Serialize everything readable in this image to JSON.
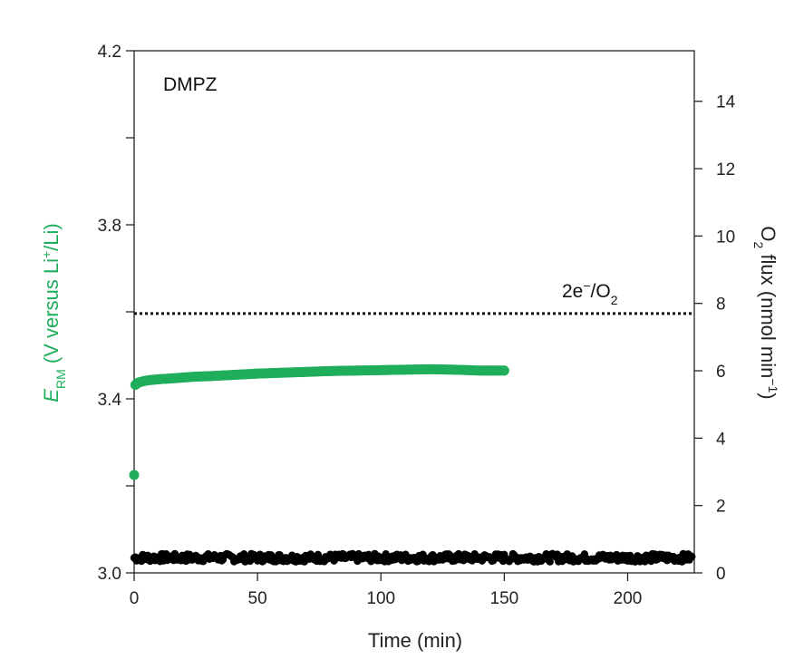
{
  "chart_data": {
    "type": "scatter",
    "panel_label": "DMPZ",
    "x_axis": {
      "label": "Time (min)",
      "range": [
        0,
        227
      ],
      "ticks": [
        0,
        50,
        100,
        150,
        200
      ],
      "tick_labels": [
        "0",
        "50",
        "100",
        "150",
        "200"
      ]
    },
    "y_left": {
      "label_symbol": "E",
      "label_subscript": "RM",
      "label_open": " (V versus Li",
      "label_superscript": "+",
      "label_close": "/Li)",
      "range": [
        3.0,
        4.2
      ],
      "ticks": [
        3.0,
        3.4,
        3.8,
        4.2
      ],
      "minor_ticks": [
        3.2,
        3.6,
        4.0
      ],
      "tick_labels": [
        "3.0",
        "3.4",
        "3.8",
        "4.2"
      ],
      "color": "#1fae5b"
    },
    "y_right": {
      "label_prefix": "O",
      "label_subscript": "2",
      "label_mid": " flux (nmol min",
      "label_superscript": "−1",
      "label_close": ")",
      "range": [
        0,
        15.5
      ],
      "ticks": [
        0,
        2,
        4,
        6,
        8,
        10,
        12,
        14
      ],
      "tick_labels": [
        "0",
        "2",
        "4",
        "6",
        "8",
        "10",
        "12",
        "14"
      ],
      "color": "#000000"
    },
    "reference_line": {
      "value": 7.7,
      "axis": "right",
      "style": "dotted",
      "label_base": "2e",
      "label_superscript": "−",
      "label_slash": "/O",
      "label_subscript": "2"
    },
    "series": [
      {
        "axis": "left",
        "color": "#1fae5b",
        "x": [
          0,
          0.5,
          1,
          2,
          4,
          6,
          8,
          10,
          15,
          20,
          25,
          30,
          40,
          50,
          60,
          70,
          80,
          90,
          100,
          110,
          120,
          130,
          140,
          145,
          150
        ],
        "y": [
          3.225,
          3.432,
          3.435,
          3.438,
          3.441,
          3.443,
          3.444,
          3.445,
          3.447,
          3.449,
          3.451,
          3.452,
          3.455,
          3.458,
          3.46,
          3.462,
          3.464,
          3.465,
          3.466,
          3.467,
          3.468,
          3.467,
          3.465,
          3.465,
          3.465
        ]
      },
      {
        "axis": "right",
        "color": "#000000",
        "x_start": 0,
        "x_end": 226,
        "step": 1,
        "y_mean": 0.45,
        "y_spread": 0.12
      }
    ]
  }
}
